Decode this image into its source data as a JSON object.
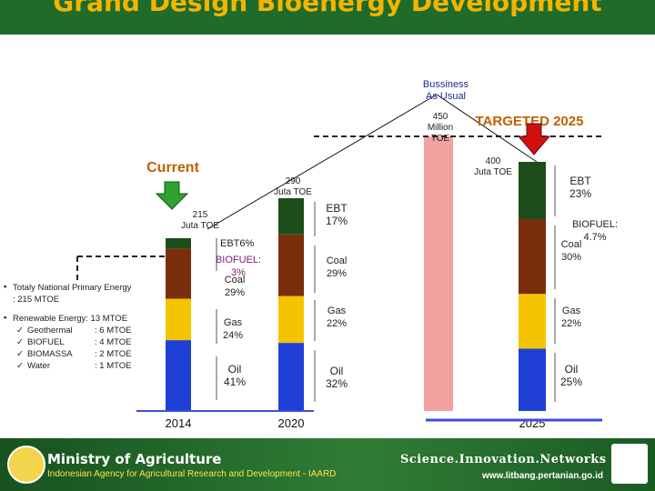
{
  "header": {
    "title": "Grand Design Bioenergy Development"
  },
  "footer": {
    "ministry": "Ministry of Agriculture",
    "agency": "Indonesian Agency for Agricultural Research and Development - IAARD",
    "tagline": "Science.Innovation.Networks",
    "url": "www.litbang.pertanian.go.id"
  },
  "notes": {
    "total_line1": "Totaly National Primary Energy",
    "total_line2": ": 215 MTOE",
    "renewable": "Renewable Energy: 13 MTOE",
    "items": [
      {
        "name": "Geothermal",
        "value": ": 6 MTOE"
      },
      {
        "name": "BIOFUEL",
        "value": ": 4 MTOE"
      },
      {
        "name": "BIOMASSA",
        "value": ": 2 MTOE"
      },
      {
        "name": "Water",
        "value": ": 1 MTOE"
      }
    ]
  },
  "labels": {
    "current": "Current",
    "bau_line1": "Bussiness",
    "bau_line2": "As Usual",
    "targeted": "TARGETED 2025",
    "bau_total_1": "450",
    "bau_total_2": "Million",
    "bau_total_3": "TOE",
    "total_2014_1": "215",
    "total_2014_2": "Juta TOE",
    "total_2020_1": "290",
    "total_2020_2": "Juta TOE",
    "total_2025_1": "400",
    "total_2025_2": "Juta TOE"
  },
  "colors": {
    "oil": "#1f3fd6",
    "gas": "#f5c400",
    "coal": "#7a2e0b",
    "ebt": "#1e4d1c",
    "bau": "#f4a1a1",
    "accent": "#c06000",
    "arrow_current": "#2fa12f",
    "arrow_target": "#d01010"
  },
  "chart_data": {
    "type": "bar",
    "subtype": "stacked",
    "categories": [
      "2014",
      "2020",
      "2025"
    ],
    "totals": [
      "215 Juta TOE",
      "290 Juta TOE",
      "400 Juta TOE"
    ],
    "bau_total": "450 Million TOE",
    "series": [
      {
        "name": "Oil",
        "values": [
          41,
          32,
          25
        ],
        "labels": [
          "Oil 41%",
          "Oil 32%",
          "Oil 25%"
        ]
      },
      {
        "name": "Gas",
        "values": [
          24,
          22,
          22
        ],
        "labels": [
          "Gas 24%",
          "Gas 22%",
          "Gas 22%"
        ]
      },
      {
        "name": "Coal",
        "values": [
          29,
          29,
          30
        ],
        "labels": [
          "Coal 29%",
          "Coal 29%",
          "Coal 30%"
        ]
      },
      {
        "name": "EBT",
        "values": [
          6,
          17,
          23
        ],
        "labels": [
          "EBT6%",
          "EBT 17%",
          "EBT 23%"
        ]
      }
    ],
    "biofuel": [
      "BIOFUEL: 3%",
      "",
      "BIOFUEL: 4.7%"
    ]
  }
}
